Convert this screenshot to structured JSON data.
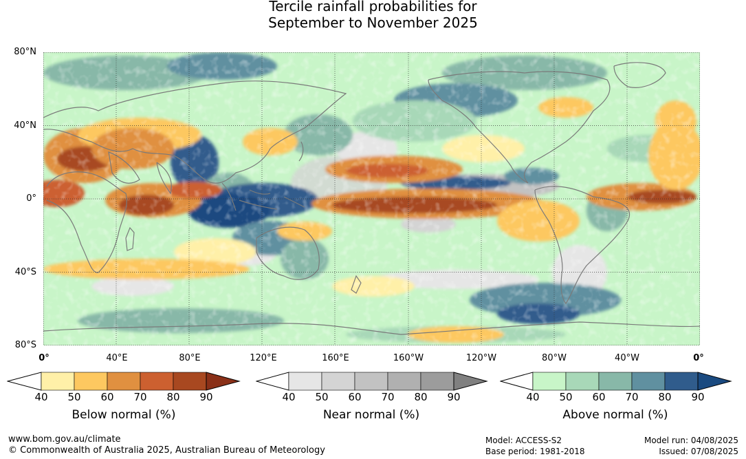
{
  "title": {
    "line1": "Tercile rainfall probabilities for",
    "line2": "September to November 2025"
  },
  "map": {
    "lat_labels": [
      "80°N",
      "40°N",
      "0°",
      "40°S",
      "80°S"
    ],
    "lon_labels": [
      "0°",
      "40°E",
      "80°E",
      "120°E",
      "160°E",
      "160°W",
      "120°W",
      "80°W",
      "40°W",
      "0°"
    ],
    "colors": {
      "below": [
        "#fff0a8",
        "#fdc860",
        "#e09040",
        "#cc6030",
        "#a84820",
        "#8a3018"
      ],
      "near": [
        "#e6e6e6",
        "#d4d4d4",
        "#c2c2c2",
        "#b0b0b0",
        "#9c9c9c",
        "#808080"
      ],
      "above": [
        "#c8f5c8",
        "#a8d8b8",
        "#88b8a8",
        "#6090a0",
        "#305c8c",
        "#1a4a80"
      ],
      "coastline": "#7a7a7a",
      "grid": "#333333"
    }
  },
  "legends": [
    {
      "id": "below",
      "title": "Below normal (%)",
      "ticks": [
        "40",
        "50",
        "60",
        "70",
        "80",
        "90"
      ],
      "colors": [
        "#fff0a8",
        "#fdc860",
        "#e09040",
        "#cc6030",
        "#a84820",
        "#8a3018"
      ]
    },
    {
      "id": "near",
      "title": "Near normal (%)",
      "ticks": [
        "40",
        "50",
        "60",
        "70",
        "80",
        "90"
      ],
      "colors": [
        "#e6e6e6",
        "#d4d4d4",
        "#c2c2c2",
        "#b0b0b0",
        "#9c9c9c",
        "#808080"
      ]
    },
    {
      "id": "above",
      "title": "Above normal (%)",
      "ticks": [
        "40",
        "50",
        "60",
        "70",
        "80",
        "90"
      ],
      "colors": [
        "#c8f5c8",
        "#a8d8b8",
        "#88b8a8",
        "#6090a0",
        "#305c8c",
        "#1a4a80"
      ]
    }
  ],
  "footer": {
    "url": "www.bom.gov.au/climate",
    "copyright": "© Commonwealth of Australia 2025, Australian Bureau of Meteorology",
    "model": "Model: ACCESS-S2",
    "base_period": "Base period: 1981-2018",
    "model_run": "Model run: 04/08/2025",
    "issued": "Issued: 07/08/2025"
  }
}
